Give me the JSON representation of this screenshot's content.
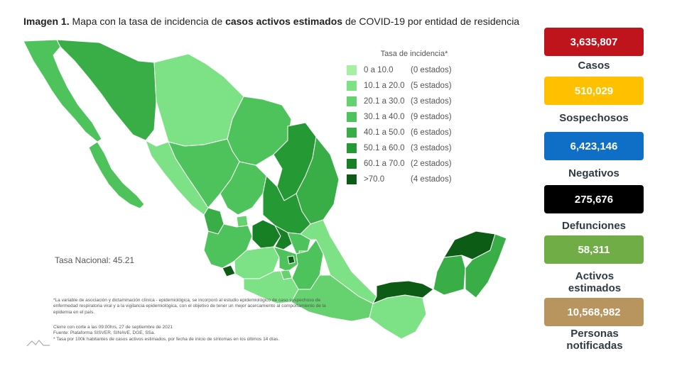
{
  "title": {
    "prefix": "Imagen 1.",
    "part1": " Mapa con la tasa de incidencia de ",
    "bold": "casos activos estimados",
    "part2": " de COVID-19 por entidad de residencia"
  },
  "legend": {
    "title": "Tasa de incidencia*",
    "items": [
      {
        "range": "0   a  10.0",
        "count": "(0 estados)",
        "color": "#a6f0a6"
      },
      {
        "range": "10.1 a  20.0",
        "count": "(5 estados)",
        "color": "#7de285"
      },
      {
        "range": "20.1 a  30.0",
        "count": "(3 estados)",
        "color": "#65d16f"
      },
      {
        "range": "30.1 a  40.0",
        "count": "(9 estados)",
        "color": "#4fc35b"
      },
      {
        "range": "40.1 a  50.0",
        "count": "(6 estados)",
        "color": "#3aae46"
      },
      {
        "range": "50.1 a  60.0",
        "count": "(3 estados)",
        "color": "#259a34"
      },
      {
        "range": "60.1 a  70.0",
        "count": "(2 estados)",
        "color": "#177f24"
      },
      {
        "range": ">70.0",
        "count": "(4 estados)",
        "color": "#0c5c16"
      }
    ]
  },
  "tasa_nacional": "Tasa Nacional: 45.21",
  "footnotes": {
    "variable": "*La variable de asociación y dictaminación clínica - epidemiológica, se incorporó al estudio epidemiológico de caso sospechoso de enfermedad respiratoria viral y a la vigilancia epidemiológica, con el objetivo de tener un mejor acercamiento al comportamiento de la epidemia en el país.",
    "cierre": "Cierre con corte a las 09:00hrs, 27 de septiembre de 2021",
    "fuente": "Fuente: Plataforma SISVER, SINAVE, DGE, SSa.",
    "tasa": "* Tasa por 100k habitantes de casos activos estimados, por fecha de inicio de síntomas en los últimos 14 días."
  },
  "stats": [
    {
      "value": "3,635,807",
      "label": "Casos",
      "color": "#c0141c"
    },
    {
      "value": "510,029",
      "label": "Sospechosos",
      "color": "#ffc000"
    },
    {
      "value": "6,423,146",
      "label": "Negativos",
      "color": "#0f6fc6"
    },
    {
      "value": "275,676",
      "label": "Defunciones",
      "color": "#000000"
    },
    {
      "value": "58,311",
      "label": "Activos estimados",
      "color": "#70ad47"
    },
    {
      "value": "10,568,982",
      "label": "Personas notificadas",
      "color": "#b8955f"
    }
  ]
}
